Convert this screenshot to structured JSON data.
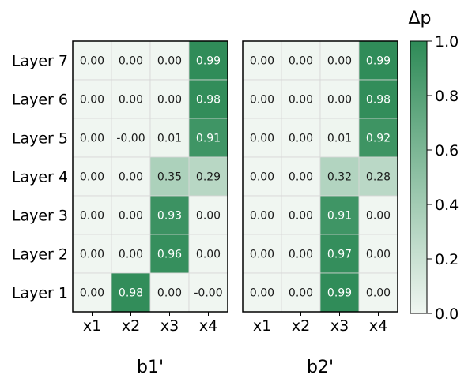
{
  "chart_data": {
    "type": "heatmap",
    "colorbar": {
      "title": "Δp",
      "range": [
        0.0,
        1.0
      ],
      "ticks": [
        "0.0",
        "0.2",
        "0.4",
        "0.6",
        "0.8",
        "1.0"
      ],
      "tick_values": [
        0.0,
        0.2,
        0.4,
        0.6,
        0.8,
        1.0
      ],
      "color_low": "#f0f6f1",
      "color_high": "#2e8b57"
    },
    "rows": [
      "Layer 7",
      "Layer 6",
      "Layer 5",
      "Layer 4",
      "Layer 3",
      "Layer 2",
      "Layer 1"
    ],
    "panels": [
      {
        "label": "b1'",
        "columns": [
          "x1",
          "x2",
          "x3",
          "x4"
        ],
        "values": [
          [
            0.0,
            0.0,
            0.0,
            0.99
          ],
          [
            0.0,
            0.0,
            0.0,
            0.98
          ],
          [
            0.0,
            -0.0,
            0.01,
            0.91
          ],
          [
            0.0,
            0.0,
            0.35,
            0.29
          ],
          [
            0.0,
            0.0,
            0.93,
            0.0
          ],
          [
            0.0,
            0.0,
            0.96,
            0.0
          ],
          [
            0.0,
            0.98,
            0.0,
            -0.0
          ]
        ],
        "labels": [
          [
            "0.00",
            "0.00",
            "0.00",
            "0.99"
          ],
          [
            "0.00",
            "0.00",
            "0.00",
            "0.98"
          ],
          [
            "0.00",
            "-0.00",
            "0.01",
            "0.91"
          ],
          [
            "0.00",
            "0.00",
            "0.35",
            "0.29"
          ],
          [
            "0.00",
            "0.00",
            "0.93",
            "0.00"
          ],
          [
            "0.00",
            "0.00",
            "0.96",
            "0.00"
          ],
          [
            "0.00",
            "0.98",
            "0.00",
            "-0.00"
          ]
        ]
      },
      {
        "label": "b2'",
        "columns": [
          "x1",
          "x2",
          "x3",
          "x4"
        ],
        "values": [
          [
            0.0,
            0.0,
            0.0,
            0.99
          ],
          [
            0.0,
            0.0,
            0.0,
            0.98
          ],
          [
            0.0,
            0.0,
            0.01,
            0.92
          ],
          [
            0.0,
            0.0,
            0.32,
            0.28
          ],
          [
            0.0,
            0.0,
            0.91,
            0.0
          ],
          [
            0.0,
            0.0,
            0.97,
            0.0
          ],
          [
            0.0,
            0.0,
            0.99,
            0.0
          ]
        ],
        "labels": [
          [
            "0.00",
            "0.00",
            "0.00",
            "0.99"
          ],
          [
            "0.00",
            "0.00",
            "0.00",
            "0.98"
          ],
          [
            "0.00",
            "0.00",
            "0.01",
            "0.92"
          ],
          [
            "0.00",
            "0.00",
            "0.32",
            "0.28"
          ],
          [
            "0.00",
            "0.00",
            "0.91",
            "0.00"
          ],
          [
            "0.00",
            "0.00",
            "0.97",
            "0.00"
          ],
          [
            "0.00",
            "0.00",
            "0.99",
            "0.00"
          ]
        ]
      }
    ]
  }
}
